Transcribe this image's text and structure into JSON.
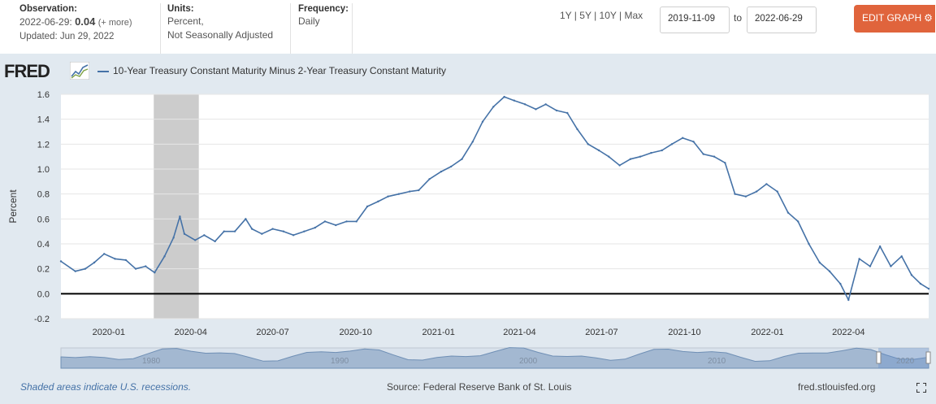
{
  "observation": {
    "label": "Observation:",
    "date": "2022-06-29:",
    "value": "0.04",
    "more": "(+ more)",
    "updated": "Updated: Jun 29, 2022"
  },
  "units": {
    "label": "Units:",
    "line1": "Percent,",
    "line2": "Not Seasonally Adjusted"
  },
  "frequency": {
    "label": "Frequency:",
    "value": "Daily"
  },
  "range_links": [
    "1Y",
    "5Y",
    "10Y",
    "Max"
  ],
  "date_range": {
    "start": "2019-11-09",
    "to_label": "to",
    "end": "2022-06-29"
  },
  "edit_button": "EDIT GRAPH",
  "logo": "FRED",
  "footer": {
    "recession_note": "Shaded areas indicate U.S. recessions.",
    "source": "Source: Federal Reserve Bank of St. Louis",
    "site": "fred.stlouisfed.org"
  },
  "icons": {
    "gear": "gear-icon",
    "logo_chart": "line-chart-icon",
    "expand": "fullscreen-icon"
  },
  "colors": {
    "series": "#4572a7",
    "recession": "#cccccc",
    "accent": "#e0643c"
  },
  "chart_data": {
    "type": "line",
    "ylabel": "Percent",
    "ylim": [
      -0.2,
      1.6
    ],
    "yticks": [
      "1.6",
      "1.4",
      "1.2",
      "1.0",
      "0.8",
      "0.6",
      "0.4",
      "0.2",
      "0.0",
      "-0.2"
    ],
    "xticks": [
      "2020-01",
      "2020-04",
      "2020-07",
      "2020-10",
      "2021-01",
      "2021-04",
      "2021-07",
      "2021-10",
      "2022-01",
      "2022-04"
    ],
    "navigator_labels": [
      "1980",
      "1990",
      "2000",
      "2010",
      "2020"
    ],
    "recession": {
      "start": "2020-02",
      "end": "2020-04"
    },
    "series": [
      {
        "name": "10-Year Treasury Constant Maturity Minus 2-Year Treasury Constant Maturity",
        "x": [
          "2019-11-09",
          "2019-11-25",
          "2019-12-06",
          "2019-12-16",
          "2019-12-27",
          "2020-01-08",
          "2020-01-20",
          "2020-01-31",
          "2020-02-11",
          "2020-02-21",
          "2020-03-03",
          "2020-03-13",
          "2020-03-20",
          "2020-03-25",
          "2020-04-06",
          "2020-04-16",
          "2020-04-28",
          "2020-05-08",
          "2020-05-20",
          "2020-06-01",
          "2020-06-08",
          "2020-06-19",
          "2020-07-01",
          "2020-07-13",
          "2020-07-24",
          "2020-08-05",
          "2020-08-17",
          "2020-08-28",
          "2020-09-09",
          "2020-09-21",
          "2020-10-02",
          "2020-10-14",
          "2020-10-26",
          "2020-11-06",
          "2020-11-18",
          "2020-11-30",
          "2020-12-10",
          "2020-12-22",
          "2021-01-04",
          "2021-01-15",
          "2021-01-27",
          "2021-02-08",
          "2021-02-19",
          "2021-03-03",
          "2021-03-15",
          "2021-03-26",
          "2021-04-07",
          "2021-04-19",
          "2021-04-30",
          "2021-05-12",
          "2021-05-24",
          "2021-06-04",
          "2021-06-16",
          "2021-06-28",
          "2021-07-09",
          "2021-07-21",
          "2021-08-02",
          "2021-08-13",
          "2021-08-25",
          "2021-09-06",
          "2021-09-17",
          "2021-09-29",
          "2021-10-11",
          "2021-10-22",
          "2021-11-03",
          "2021-11-15",
          "2021-11-26",
          "2021-12-08",
          "2021-12-20",
          "2021-12-31",
          "2022-01-12",
          "2022-01-24",
          "2022-02-04",
          "2022-02-16",
          "2022-02-28",
          "2022-03-11",
          "2022-03-23",
          "2022-04-01",
          "2022-04-13",
          "2022-04-25",
          "2022-05-06",
          "2022-05-18",
          "2022-05-30",
          "2022-06-10",
          "2022-06-20",
          "2022-06-29"
        ],
        "y": [
          0.26,
          0.18,
          0.2,
          0.25,
          0.32,
          0.28,
          0.27,
          0.2,
          0.22,
          0.17,
          0.3,
          0.45,
          0.62,
          0.48,
          0.43,
          0.47,
          0.42,
          0.5,
          0.5,
          0.6,
          0.52,
          0.48,
          0.52,
          0.5,
          0.47,
          0.5,
          0.53,
          0.58,
          0.55,
          0.58,
          0.58,
          0.7,
          0.74,
          0.78,
          0.8,
          0.82,
          0.83,
          0.92,
          0.98,
          1.02,
          1.08,
          1.22,
          1.38,
          1.5,
          1.58,
          1.55,
          1.52,
          1.48,
          1.52,
          1.47,
          1.45,
          1.32,
          1.2,
          1.15,
          1.1,
          1.03,
          1.08,
          1.1,
          1.13,
          1.15,
          1.2,
          1.25,
          1.22,
          1.12,
          1.1,
          1.05,
          0.8,
          0.78,
          0.82,
          0.88,
          0.82,
          0.65,
          0.58,
          0.4,
          0.25,
          0.18,
          0.08,
          -0.05,
          0.28,
          0.22,
          0.38,
          0.22,
          0.3,
          0.15,
          0.08,
          0.04
        ]
      }
    ]
  }
}
